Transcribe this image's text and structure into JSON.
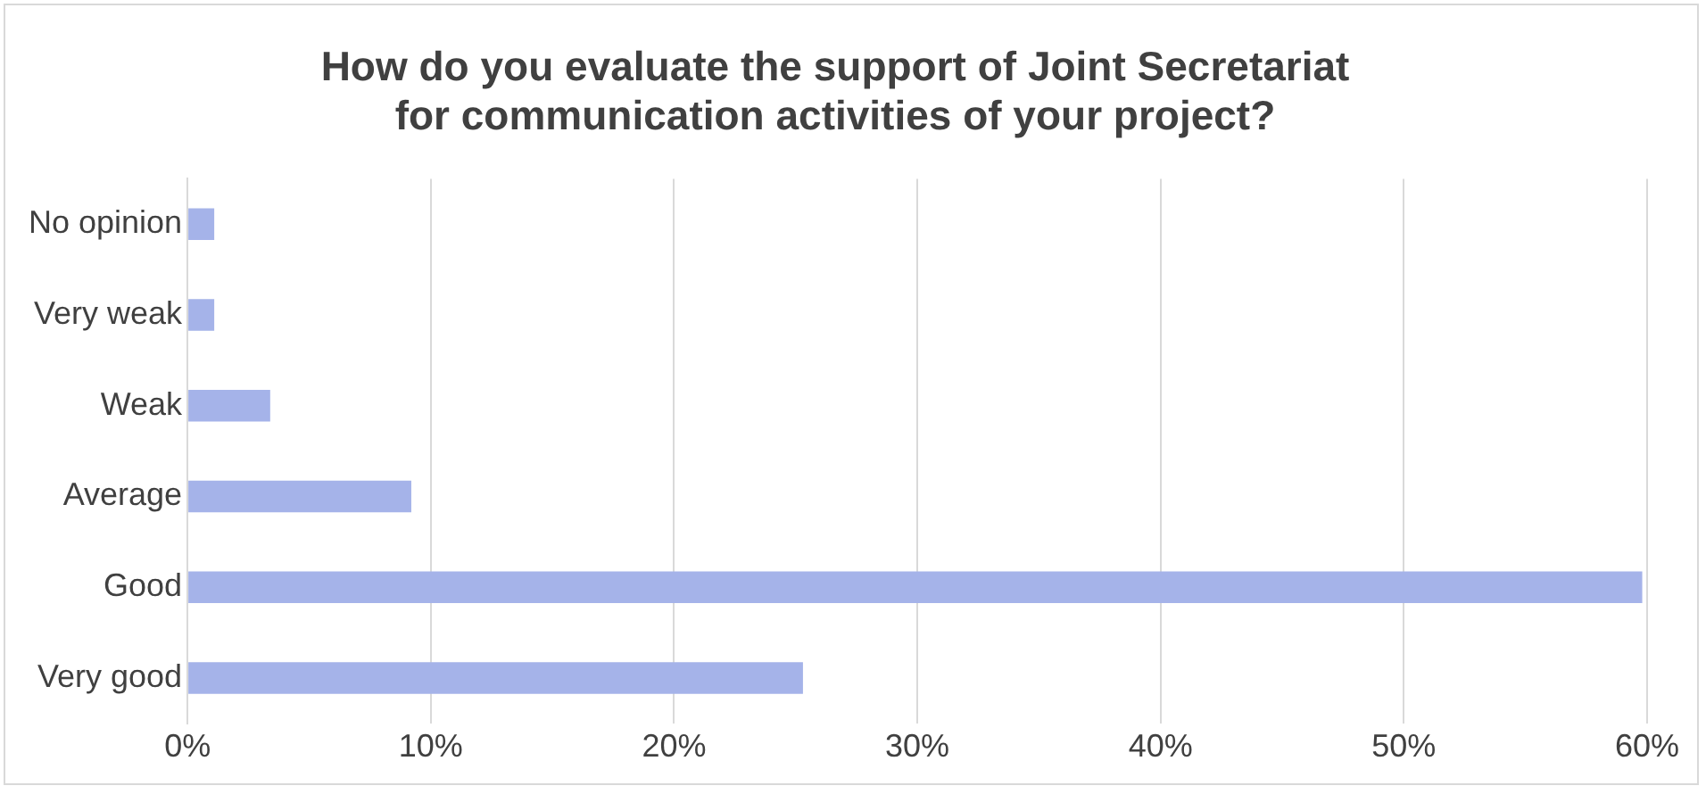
{
  "chart_data": {
    "type": "bar",
    "orientation": "horizontal",
    "title": "How do you evaluate the support of Joint Secretariat for communication activities of your project?",
    "categories": [
      "No opinion",
      "Very weak",
      "Weak",
      "Average",
      "Good",
      "Very good"
    ],
    "values": [
      1.1,
      1.1,
      3.4,
      9.2,
      59.8,
      25.3
    ],
    "color": "#a5b3e9",
    "xlim": [
      0,
      60
    ],
    "xticks": [
      {
        "value": 0,
        "label": "0%"
      },
      {
        "value": 10,
        "label": "10%"
      },
      {
        "value": 20,
        "label": "20%"
      },
      {
        "value": 30,
        "label": "30%"
      },
      {
        "value": 40,
        "label": "40%"
      },
      {
        "value": 50,
        "label": "50%"
      },
      {
        "value": 60,
        "label": "60%"
      }
    ],
    "grid": "x",
    "legend": false
  }
}
